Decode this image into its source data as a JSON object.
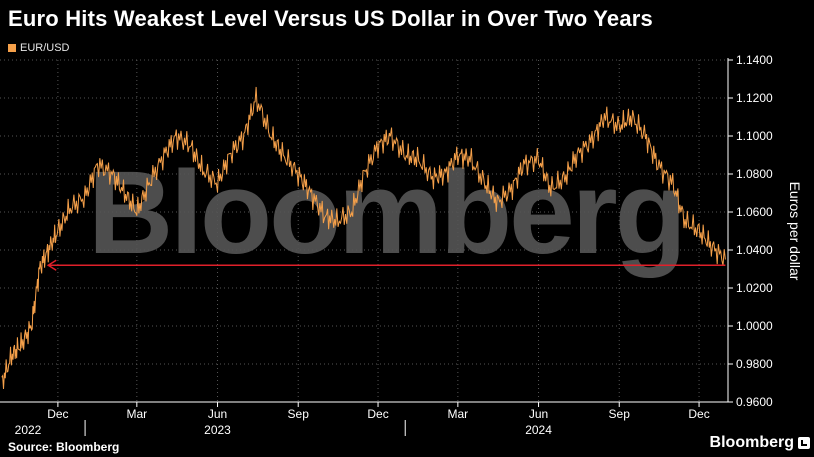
{
  "title": "Euro Hits Weakest Level Versus US Dollar in Over Two Years",
  "source": "Source: Bloomberg",
  "brand": "Bloomberg",
  "watermark": "Bloomberg",
  "colors": {
    "series": "#f5a04a",
    "reference_line": "#e0202a",
    "grid": "#555555",
    "text": "#ffffff"
  },
  "chart_data": {
    "type": "line",
    "title": "Euro Hits Weakest Level Versus US Dollar in Over Two Years",
    "ylabel": "Euros per dollar",
    "xlabel": "",
    "ylim": [
      0.96,
      1.14
    ],
    "y_ticks": [
      "1.1400",
      "1.1200",
      "1.1000",
      "1.0800",
      "1.0600",
      "1.0400",
      "1.0200",
      "1.0000",
      "0.9800",
      "0.9600"
    ],
    "y_tick_values": [
      1.14,
      1.12,
      1.1,
      1.08,
      1.06,
      1.04,
      1.02,
      1.0,
      0.98,
      0.96
    ],
    "x_ticks": [
      {
        "label": "Dec",
        "date": "2022-12-01"
      },
      {
        "label": "Mar",
        "date": "2023-03-01"
      },
      {
        "label": "Jun",
        "date": "2023-06-01"
      },
      {
        "label": "Sep",
        "date": "2023-09-01"
      },
      {
        "label": "Dec",
        "date": "2023-12-01"
      },
      {
        "label": "Mar",
        "date": "2024-03-01"
      },
      {
        "label": "Jun",
        "date": "2024-06-01"
      },
      {
        "label": "Sep",
        "date": "2024-09-01"
      },
      {
        "label": "Dec",
        "date": "2024-12-01"
      }
    ],
    "year_labels": [
      {
        "label": "2022",
        "date": "2022-11-15"
      },
      {
        "label": "2023",
        "date": "2023-06-01"
      },
      {
        "label": "2024",
        "date": "2024-06-01"
      }
    ],
    "grid": true,
    "legend": "top-left",
    "series": [
      {
        "name": "EUR/USD",
        "x": [
          "2022-09-28",
          "2022-10-10",
          "2022-10-20",
          "2022-11-01",
          "2022-11-10",
          "2022-11-20",
          "2022-12-01",
          "2022-12-15",
          "2023-01-01",
          "2023-01-15",
          "2023-02-01",
          "2023-02-15",
          "2023-03-01",
          "2023-03-15",
          "2023-04-01",
          "2023-04-15",
          "2023-05-01",
          "2023-05-15",
          "2023-06-01",
          "2023-06-15",
          "2023-07-01",
          "2023-07-15",
          "2023-08-01",
          "2023-08-15",
          "2023-09-01",
          "2023-09-15",
          "2023-10-01",
          "2023-10-15",
          "2023-11-01",
          "2023-11-15",
          "2023-12-01",
          "2023-12-15",
          "2024-01-01",
          "2024-01-15",
          "2024-02-01",
          "2024-02-15",
          "2024-03-01",
          "2024-03-15",
          "2024-04-01",
          "2024-04-15",
          "2024-05-01",
          "2024-05-15",
          "2024-06-01",
          "2024-06-15",
          "2024-07-01",
          "2024-07-15",
          "2024-08-01",
          "2024-08-15",
          "2024-09-01",
          "2024-09-15",
          "2024-10-01",
          "2024-10-15",
          "2024-11-01",
          "2024-11-15",
          "2024-12-01",
          "2024-12-15",
          "2024-12-31"
        ],
        "values": [
          0.97,
          0.985,
          0.99,
          1.0,
          1.03,
          1.04,
          1.05,
          1.062,
          1.068,
          1.085,
          1.08,
          1.07,
          1.06,
          1.075,
          1.09,
          1.1,
          1.095,
          1.082,
          1.075,
          1.09,
          1.1,
          1.12,
          1.1,
          1.09,
          1.08,
          1.07,
          1.058,
          1.055,
          1.06,
          1.08,
          1.095,
          1.1,
          1.09,
          1.088,
          1.078,
          1.08,
          1.09,
          1.088,
          1.075,
          1.065,
          1.072,
          1.085,
          1.088,
          1.072,
          1.078,
          1.09,
          1.098,
          1.11,
          1.105,
          1.11,
          1.1,
          1.085,
          1.075,
          1.055,
          1.05,
          1.042,
          1.035
        ]
      }
    ],
    "reference_line": {
      "value": 1.032,
      "from": "2022-11-20",
      "to": "2024-12-31",
      "arrow": "left"
    }
  }
}
